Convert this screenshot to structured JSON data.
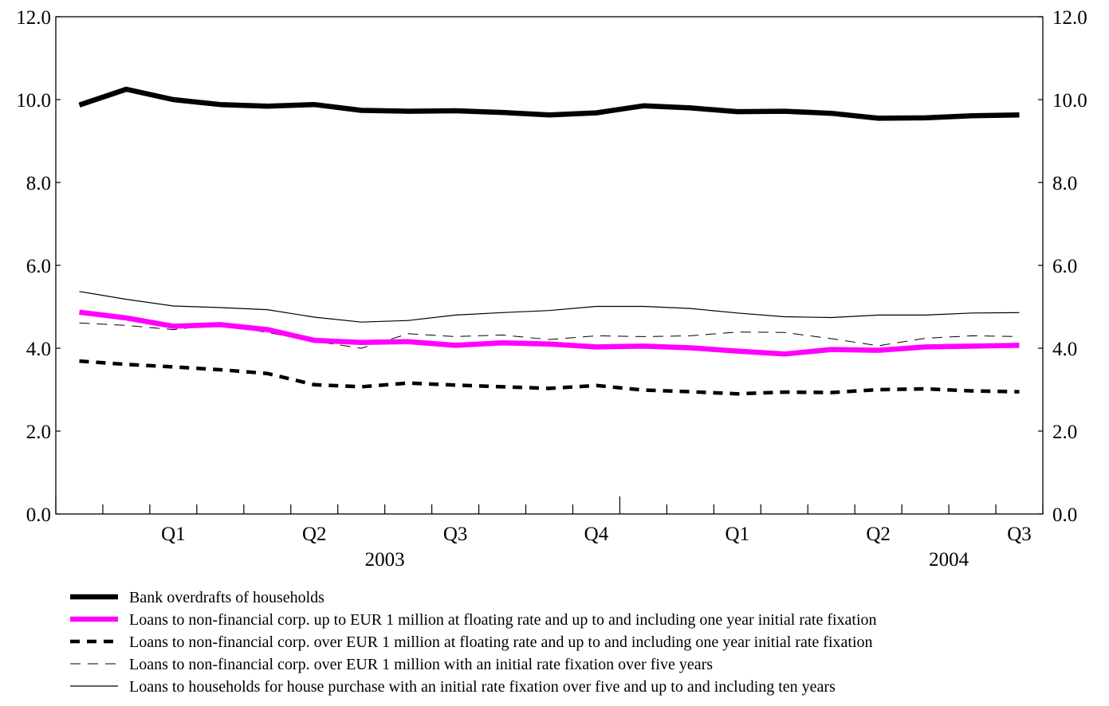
{
  "chart_data": {
    "type": "line",
    "x": [
      "2003-01",
      "2003-02",
      "2003-03",
      "2003-04",
      "2003-05",
      "2003-06",
      "2003-07",
      "2003-08",
      "2003-09",
      "2003-10",
      "2003-11",
      "2003-12",
      "2004-01",
      "2004-02",
      "2004-03",
      "2004-04",
      "2004-05",
      "2004-06",
      "2004-07",
      "2004-08",
      "2004-09"
    ],
    "quarter_labels": [
      {
        "label": "Q1",
        "month": 2
      },
      {
        "label": "Q2",
        "month": 5
      },
      {
        "label": "Q3",
        "month": 8
      },
      {
        "label": "Q4",
        "month": 11
      },
      {
        "label": "Q1",
        "month": 14
      },
      {
        "label": "Q2",
        "month": 17
      },
      {
        "label": "Q3",
        "month": 20
      }
    ],
    "year_labels": [
      {
        "label": "2003",
        "month": 6.5
      },
      {
        "label": "2004",
        "month": 18.5
      }
    ],
    "ylim": [
      0,
      12
    ],
    "yticks": [
      "0.0",
      "2.0",
      "4.0",
      "6.0",
      "8.0",
      "10.0",
      "12.0"
    ],
    "grid": false,
    "legend_position": "bottom",
    "series": [
      {
        "name": "Bank overdrafts of households",
        "color": "#000000",
        "style": "solid-thick",
        "values": [
          9.87,
          10.25,
          10.0,
          9.88,
          9.84,
          9.88,
          9.74,
          9.72,
          9.73,
          9.69,
          9.63,
          9.68,
          9.85,
          9.8,
          9.71,
          9.72,
          9.67,
          9.55,
          9.56,
          9.61,
          9.63
        ]
      },
      {
        "name": "Loans to non-financial corp. up to EUR 1 million at floating rate and up to and including one year initial rate fixation",
        "color": "#ff00ff",
        "style": "solid-thick",
        "values": [
          4.87,
          4.73,
          4.53,
          4.57,
          4.45,
          4.19,
          4.14,
          4.16,
          4.07,
          4.13,
          4.1,
          4.03,
          4.05,
          4.01,
          3.93,
          3.86,
          3.97,
          3.95,
          4.03,
          4.05,
          4.07
        ]
      },
      {
        "name": "Loans to non-financial corp. over EUR 1 million at floating rate and up to and including one year initial rate fixation",
        "color": "#000000",
        "style": "dashed-thick",
        "values": [
          3.69,
          3.61,
          3.55,
          3.48,
          3.39,
          3.12,
          3.07,
          3.16,
          3.11,
          3.07,
          3.03,
          3.1,
          2.99,
          2.95,
          2.9,
          2.94,
          2.93,
          3.0,
          3.02,
          2.97,
          2.95
        ]
      },
      {
        "name": "Loans to non-financial corp. over EUR 1 million with an initial rate fixation over five years",
        "color": "#000000",
        "style": "dashed-thin",
        "values": [
          4.61,
          4.55,
          4.45,
          4.57,
          4.38,
          4.17,
          4.0,
          4.35,
          4.28,
          4.32,
          4.21,
          4.3,
          4.28,
          4.3,
          4.39,
          4.38,
          4.23,
          4.06,
          4.24,
          4.3,
          4.28
        ]
      },
      {
        "name": "Loans to households for house purchase with an initial rate fixation over five and up to and including ten years",
        "color": "#000000",
        "style": "solid-thin",
        "values": [
          5.37,
          5.18,
          5.02,
          4.98,
          4.93,
          4.75,
          4.63,
          4.67,
          4.8,
          4.86,
          4.91,
          5.01,
          5.01,
          4.96,
          4.85,
          4.76,
          4.74,
          4.8,
          4.8,
          4.85,
          4.86
        ]
      }
    ]
  }
}
